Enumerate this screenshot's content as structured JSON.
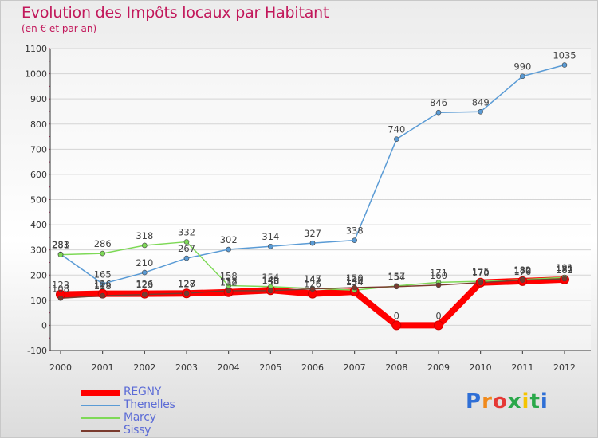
{
  "title": "Evolution des Impôts locaux par Habitant",
  "subtitle": "(en € et par an)",
  "logo": "Proxiti",
  "chart_data": {
    "type": "line",
    "title": "Evolution des Impôts locaux par Habitant",
    "ylabel": "(en € et par an)",
    "xlabel": "",
    "ylim": [
      -100,
      1100
    ],
    "yticks": [
      -100,
      0,
      100,
      200,
      300,
      400,
      500,
      600,
      700,
      800,
      900,
      1000,
      1100
    ],
    "categories": [
      "2000",
      "2001",
      "2002",
      "2003",
      "2004",
      "2005",
      "2006",
      "2007",
      "2008",
      "2009",
      "2010",
      "2011",
      "2012"
    ],
    "legend_position": "bottom-left",
    "grid": "horizontal",
    "series": [
      {
        "name": "REGNY",
        "color": "#ff0000",
        "values": [
          123,
          126,
          126,
          127,
          132,
          140,
          126,
          134,
          0,
          0,
          170,
          176,
          182
        ]
      },
      {
        "name": "Thenelles",
        "color": "#5a9bd5",
        "values": [
          283,
          165,
          210,
          267,
          302,
          314,
          327,
          338,
          740,
          846,
          849,
          990,
          1035
        ]
      },
      {
        "name": "Marcy",
        "color": "#7ed957",
        "values": [
          281,
          286,
          318,
          332,
          158,
          154,
          147,
          140,
          157,
          171,
          175,
          182,
          191
        ]
      },
      {
        "name": "Sissy",
        "color": "#7a3b2e",
        "values": [
          108,
          118,
          123,
          128,
          138,
          138,
          145,
          150,
          154,
          160,
          170,
          180,
          185
        ]
      }
    ],
    "point_labels": [
      {
        "series": "REGNY",
        "labels": [
          "123",
          "126",
          "126",
          "127",
          "132",
          "140",
          "126",
          "134",
          "0",
          "0",
          "170",
          "176",
          "182"
        ]
      },
      {
        "series": "Thenelles",
        "labels": [
          "283",
          "165",
          "210",
          "267",
          "302",
          "314",
          "327",
          "338",
          "740",
          "846",
          "849",
          "990",
          "1035"
        ]
      },
      {
        "series": "Marcy",
        "labels": [
          "281",
          "286",
          "318",
          "332",
          "158",
          "154",
          "147",
          "140",
          "157",
          "171",
          "175",
          "182",
          "191"
        ]
      },
      {
        "series": "Sissy",
        "labels": [
          "108",
          "118",
          "123",
          "128",
          "138",
          "138",
          "145",
          "150",
          "154",
          "160",
          "170",
          "180",
          "185"
        ]
      }
    ]
  }
}
